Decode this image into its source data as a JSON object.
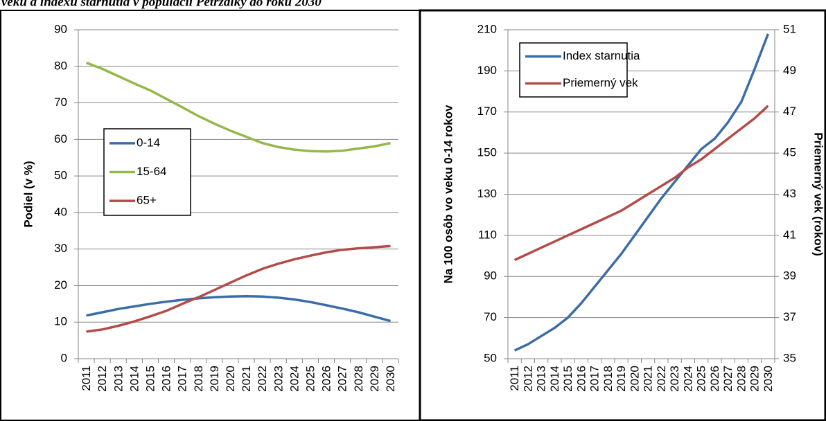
{
  "header": {
    "title": "veku a indexu starnutia v populácii Petržalky do roku 2030"
  },
  "chart_data": [
    {
      "type": "line",
      "ylabel": "Podiel (v %)",
      "categories": [
        "2011",
        "2012",
        "2013",
        "2014",
        "2015",
        "2016",
        "2017",
        "2018",
        "2019",
        "2020",
        "2021",
        "2022",
        "2023",
        "2024",
        "2025",
        "2026",
        "2027",
        "2028",
        "2029",
        "2030"
      ],
      "series": [
        {
          "name": "0-14",
          "color": "#3c6ca8",
          "values": [
            11.8,
            12.7,
            13.6,
            14.3,
            15.0,
            15.6,
            16.1,
            16.5,
            16.8,
            17.0,
            17.1,
            17.0,
            16.7,
            16.2,
            15.5,
            14.6,
            13.7,
            12.7,
            11.5,
            10.3
          ]
        },
        {
          "name": "15-64",
          "color": "#94b84a",
          "values": [
            81.0,
            79.3,
            77.3,
            75.3,
            73.4,
            71.1,
            68.8,
            66.4,
            64.3,
            62.4,
            60.7,
            59.0,
            57.9,
            57.2,
            56.8,
            56.7,
            56.9,
            57.5,
            58.1,
            59.0
          ]
        },
        {
          "name": "65+",
          "color": "#b44b48",
          "values": [
            7.4,
            8.0,
            9.0,
            10.2,
            11.6,
            13.1,
            15.0,
            16.8,
            18.8,
            20.8,
            22.8,
            24.6,
            26.0,
            27.2,
            28.2,
            29.1,
            29.8,
            30.2,
            30.5,
            30.8
          ]
        }
      ],
      "ylim": [
        0,
        90
      ],
      "yticks": [
        0,
        10,
        20,
        30,
        40,
        50,
        60,
        70,
        80,
        90
      ],
      "grid": true
    },
    {
      "type": "line",
      "ylabel": "Na 100 osôb vo veku 0-14 rokov",
      "y2label": "Priemerný vek (rokov)",
      "categories": [
        "2011",
        "2012",
        "2013",
        "2014",
        "2015",
        "2016",
        "2017",
        "2018",
        "2019",
        "2020",
        "2021",
        "2022",
        "2023",
        "2024",
        "2025",
        "2026",
        "2027",
        "2028",
        "2029",
        "2030"
      ],
      "series": [
        {
          "name": "Index starnutia",
          "color": "#3c6ca8",
          "values": [
            54,
            57,
            61,
            65,
            70,
            77,
            85,
            93,
            101,
            110,
            119,
            128,
            136,
            144,
            152,
            157,
            165,
            175,
            191,
            208
          ]
        },
        {
          "name": "Priemerný vek",
          "color": "#b44b48",
          "axis": "y2",
          "values": [
            39.8,
            40.1,
            40.4,
            40.7,
            41.0,
            41.3,
            41.6,
            41.9,
            42.2,
            42.6,
            43.0,
            43.4,
            43.8,
            44.3,
            44.7,
            45.2,
            45.7,
            46.2,
            46.7,
            47.3
          ]
        }
      ],
      "ylim": [
        50,
        210
      ],
      "yticks": [
        50,
        70,
        90,
        110,
        130,
        150,
        170,
        190,
        210
      ],
      "y2lim": [
        35,
        51
      ],
      "y2ticks": [
        35,
        37,
        39,
        41,
        43,
        45,
        47,
        49,
        51
      ],
      "grid": true
    }
  ]
}
